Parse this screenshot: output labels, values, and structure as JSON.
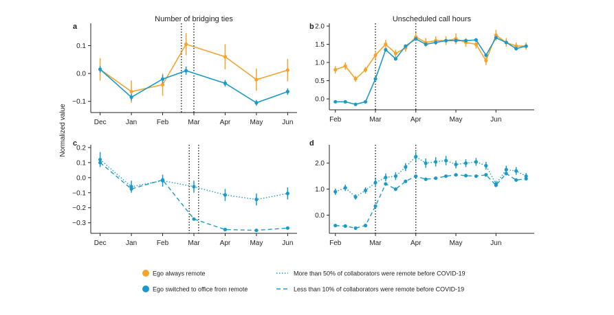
{
  "figure": {
    "ylabel": "Normalized value",
    "colors": {
      "orange": "#f5a32b",
      "blue": "#1b9ac9",
      "axis": "#222222"
    }
  },
  "chart_data": [
    {
      "id": "a",
      "panel_letter": "a",
      "type": "line",
      "title": "Number of bridging ties",
      "x": [
        0,
        1,
        2,
        2.75,
        4,
        5,
        6
      ],
      "xticks": [
        0,
        1,
        2,
        3,
        4,
        5,
        6
      ],
      "xtick_labels": [
        "Dec",
        "Jan",
        "Feb",
        "Mar",
        "Apr",
        "May",
        "Jun"
      ],
      "xlim": [
        -0.3,
        6.3
      ],
      "ylim": [
        -0.14,
        0.17
      ],
      "yticks": [
        0.1,
        0.0,
        -0.1
      ],
      "ytick_labels": [
        "0.1",
        "0.0",
        "−0.1"
      ],
      "vlines": [
        2.6,
        3.0
      ],
      "series": [
        {
          "name": "Ego always remote",
          "color": "orange",
          "dash": "solid",
          "values": [
            0.015,
            -0.065,
            -0.04,
            0.105,
            0.06,
            -0.022,
            0.012
          ],
          "err": [
            0.04,
            0.04,
            0.04,
            0.04,
            0.045,
            0.04,
            0.04
          ]
        },
        {
          "name": "Ego switched to office from remote",
          "color": "blue",
          "dash": "solid",
          "values": [
            0.015,
            -0.085,
            -0.02,
            0.01,
            -0.035,
            -0.105,
            -0.065
          ],
          "err": [
            0.012,
            0.012,
            0.015,
            0.015,
            0.012,
            0.01,
            0.012
          ]
        }
      ]
    },
    {
      "id": "b",
      "panel_letter": "b",
      "type": "line",
      "title": "Unscheduled call hours",
      "x": [
        0,
        0.33,
        0.67,
        1,
        1.33,
        1.67,
        2,
        2.33,
        2.67,
        3,
        3.33,
        3.67,
        4,
        4.33,
        4.67,
        5,
        5.33,
        5.67,
        6,
        6.33
      ],
      "xticks": [
        0,
        1.33,
        2.67,
        4,
        5.33
      ],
      "xtick_labels": [
        "Feb",
        "Mar",
        "Apr",
        "May",
        "Jun"
      ],
      "xlim": [
        -0.2,
        6.6
      ],
      "ylim": [
        -0.3,
        2.0
      ],
      "yticks": [
        2.0,
        1.5,
        1.0,
        0.5,
        0.0
      ],
      "ytick_labels": [
        "2.0",
        "1.5",
        "1.0",
        "0.5",
        "0.0"
      ],
      "vlines": [
        1.33,
        2.67
      ],
      "series": [
        {
          "name": "Ego always remote",
          "color": "orange",
          "dash": "solid",
          "values": [
            0.8,
            0.9,
            0.55,
            0.8,
            1.2,
            1.5,
            1.25,
            1.4,
            1.7,
            1.55,
            1.6,
            1.6,
            1.65,
            1.55,
            1.5,
            1.05,
            1.75,
            1.55,
            1.45,
            1.45
          ],
          "err": [
            0.1,
            0.1,
            0.08,
            0.08,
            0.12,
            0.12,
            0.1,
            0.1,
            0.12,
            0.12,
            0.12,
            0.12,
            0.15,
            0.12,
            0.12,
            0.12,
            0.15,
            0.12,
            0.1,
            0.1
          ]
        },
        {
          "name": "Ego switched to office from remote",
          "color": "blue",
          "dash": "solid",
          "values": [
            -0.08,
            -0.08,
            -0.15,
            -0.08,
            0.55,
            1.35,
            1.1,
            1.45,
            1.65,
            1.5,
            1.55,
            1.6,
            1.6,
            1.6,
            1.62,
            1.2,
            1.68,
            1.55,
            1.38,
            1.45
          ],
          "err": [
            0.01,
            0.01,
            0.01,
            0.01,
            0.03,
            0.04,
            0.03,
            0.03,
            0.04,
            0.03,
            0.03,
            0.03,
            0.03,
            0.03,
            0.03,
            0.04,
            0.03,
            0.03,
            0.03,
            0.03
          ]
        }
      ]
    },
    {
      "id": "c",
      "panel_letter": "c",
      "type": "line",
      "x": [
        0,
        1,
        2,
        3,
        4,
        5,
        6
      ],
      "xticks": [
        0,
        1,
        2,
        3,
        4,
        5,
        6
      ],
      "xtick_labels": [
        "Dec",
        "Jan",
        "Feb",
        "Mar",
        "Apr",
        "May",
        "Jun"
      ],
      "xlim": [
        -0.3,
        6.3
      ],
      "ylim": [
        -0.37,
        0.2
      ],
      "yticks": [
        0.2,
        0.1,
        0.0,
        -0.1,
        -0.2,
        -0.3
      ],
      "ytick_labels": [
        "0.2",
        "0.1",
        "0.0",
        "−0.1",
        "−0.2",
        "−0.3"
      ],
      "vlines": [
        2.85,
        3.15
      ],
      "series": [
        {
          "name": "More than 50% of collaborators were remote before COVID-19",
          "color": "blue",
          "dash": "dotted",
          "values": [
            0.12,
            -0.06,
            -0.02,
            -0.06,
            -0.115,
            -0.145,
            -0.105
          ],
          "err": [
            0.05,
            0.04,
            0.04,
            0.04,
            0.04,
            0.04,
            0.04
          ]
        },
        {
          "name": "Less than 10% of collaborators were remote before COVID-19",
          "color": "blue",
          "dash": "dashed",
          "values": [
            0.1,
            -0.075,
            -0.015,
            -0.275,
            -0.345,
            -0.35,
            -0.335
          ],
          "err": [
            0.02,
            0.015,
            0.015,
            0.008,
            0.006,
            0.006,
            0.006
          ]
        }
      ]
    },
    {
      "id": "d",
      "panel_letter": "d",
      "type": "line",
      "x": [
        0,
        0.33,
        0.67,
        1,
        1.33,
        1.67,
        2,
        2.33,
        2.67,
        3,
        3.33,
        3.67,
        4,
        4.33,
        4.67,
        5,
        5.33,
        5.67,
        6,
        6.33
      ],
      "xticks": [
        0,
        1.33,
        2.67,
        4,
        5.33
      ],
      "xtick_labels": [
        "Feb",
        "Mar",
        "Apr",
        "May",
        "Jun"
      ],
      "xlim": [
        -0.2,
        6.6
      ],
      "ylim": [
        -0.7,
        2.6
      ],
      "yticks": [
        2.0,
        1.0,
        0.0
      ],
      "ytick_labels": [
        "2.0",
        "1.0",
        "0.0"
      ],
      "vlines": [
        1.33,
        2.67
      ],
      "series": [
        {
          "name": "More than 50% of collaborators were remote before COVID-19",
          "color": "blue",
          "dash": "dotted",
          "values": [
            0.9,
            1.05,
            0.7,
            0.95,
            1.25,
            1.45,
            1.5,
            1.85,
            2.25,
            2.0,
            2.05,
            2.1,
            1.95,
            2.0,
            2.05,
            1.9,
            1.2,
            1.75,
            1.7,
            1.5
          ],
          "err": [
            0.12,
            0.12,
            0.1,
            0.12,
            0.15,
            0.15,
            0.15,
            0.15,
            0.18,
            0.18,
            0.18,
            0.18,
            0.15,
            0.15,
            0.15,
            0.15,
            0.12,
            0.15,
            0.15,
            0.12
          ]
        },
        {
          "name": "Less than 10% of collaborators were remote before COVID-19",
          "color": "blue",
          "dash": "dashed",
          "values": [
            -0.4,
            -0.42,
            -0.5,
            -0.4,
            0.35,
            1.2,
            1.0,
            1.3,
            1.5,
            1.38,
            1.42,
            1.5,
            1.55,
            1.52,
            1.5,
            1.55,
            1.15,
            1.6,
            1.35,
            1.4
          ],
          "err": [
            0.02,
            0.02,
            0.02,
            0.02,
            0.04,
            0.05,
            0.04,
            0.04,
            0.05,
            0.04,
            0.04,
            0.04,
            0.04,
            0.04,
            0.04,
            0.04,
            0.05,
            0.05,
            0.04,
            0.04
          ]
        }
      ]
    }
  ],
  "legend": {
    "items": [
      {
        "label": "Ego always remote",
        "marker": "dot",
        "color": "orange"
      },
      {
        "label": "Ego switched to office from remote",
        "marker": "dot",
        "color": "blue"
      },
      {
        "label": "More than 50% of collaborators were remote before COVID-19",
        "marker": "dotted",
        "color": "blue"
      },
      {
        "label": "Less than 10% of collaborators were remote before COVID-19",
        "marker": "dashed",
        "color": "blue"
      }
    ]
  }
}
